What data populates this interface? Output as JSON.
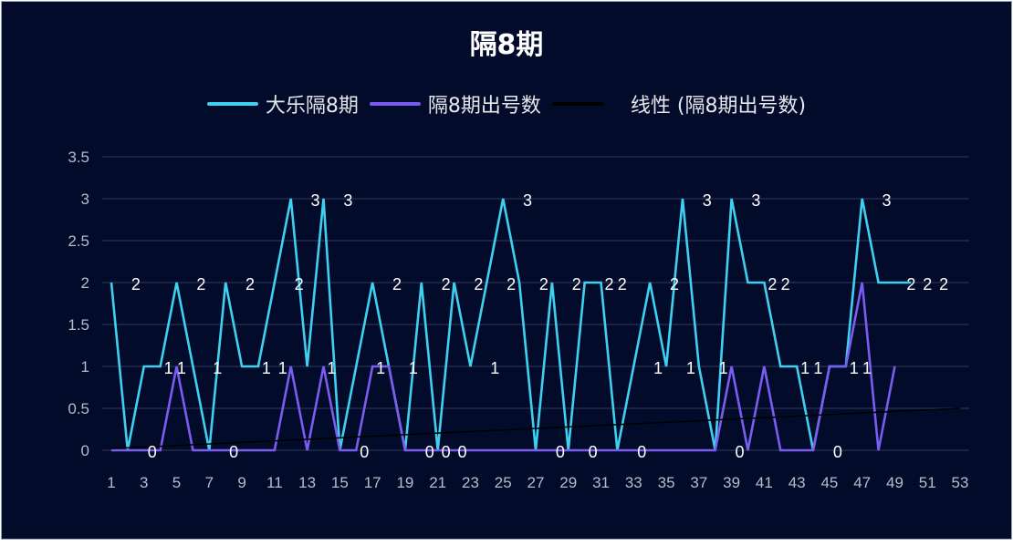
{
  "chart_data": {
    "type": "line",
    "title": "隔8期",
    "xlabel": "",
    "ylabel": "",
    "ylim": [
      0,
      3.5
    ],
    "yticks": [
      "0",
      "0.5",
      "1",
      "1.5",
      "2",
      "2.5",
      "3",
      "3.5"
    ],
    "xticks": [
      1,
      3,
      5,
      7,
      9,
      11,
      13,
      15,
      17,
      19,
      21,
      23,
      25,
      27,
      29,
      31,
      33,
      35,
      37,
      39,
      41,
      43,
      45,
      47,
      49,
      51,
      53
    ],
    "xrange": [
      1,
      53
    ],
    "grid": true,
    "legend_position": "top",
    "legend": [
      "大乐隔8期",
      "隔8期出号数",
      "线性 (隔8期出号数)"
    ],
    "series": [
      {
        "name": "大乐隔8期",
        "color": "#3fd0f0",
        "x": [
          1,
          2,
          3,
          4,
          5,
          6,
          7,
          8,
          9,
          10,
          11,
          12,
          13,
          14,
          15,
          16,
          17,
          18,
          19,
          20,
          21,
          22,
          23,
          24,
          25,
          26,
          27,
          28,
          29,
          30,
          31,
          32,
          33,
          34,
          35,
          36,
          37,
          38,
          39,
          40,
          41,
          42,
          43,
          44,
          45,
          46,
          47,
          48,
          49,
          50
        ],
        "values": [
          2,
          0,
          1,
          1,
          2,
          1,
          0,
          2,
          1,
          1,
          2,
          3,
          1,
          3,
          0,
          1,
          2,
          1,
          0,
          2,
          0,
          2,
          1,
          2,
          3,
          2,
          0,
          2,
          0,
          2,
          2,
          0,
          1,
          2,
          1,
          3,
          1,
          0,
          3,
          2,
          2,
          1,
          1,
          0,
          1,
          1,
          3,
          2,
          2,
          2
        ]
      },
      {
        "name": "隔8期出号数",
        "color": "#7b5cf0",
        "x": [
          1,
          2,
          3,
          4,
          5,
          6,
          7,
          8,
          9,
          10,
          11,
          12,
          13,
          14,
          15,
          16,
          17,
          18,
          19,
          20,
          21,
          22,
          23,
          24,
          25,
          26,
          27,
          28,
          29,
          30,
          31,
          32,
          33,
          34,
          35,
          36,
          37,
          38,
          39,
          40,
          41,
          42,
          43,
          44,
          45,
          46,
          47,
          48,
          49
        ],
        "values": [
          0,
          0,
          0,
          0,
          1,
          0,
          0,
          0,
          0,
          0,
          0,
          1,
          0,
          1,
          0,
          0,
          1,
          1,
          0,
          0,
          0,
          0,
          0,
          0,
          0,
          0,
          0,
          0,
          0,
          0,
          0,
          0,
          0,
          0,
          0,
          0,
          0,
          0,
          1,
          0,
          1,
          0,
          0,
          0,
          1,
          1,
          2,
          0,
          1
        ]
      },
      {
        "name": "线性 (隔8期出号数)",
        "color": "#000000",
        "type": "trendline",
        "x": [
          1,
          53
        ],
        "values": [
          0.02,
          0.5
        ]
      }
    ],
    "data_labels": [
      {
        "x": 2.5,
        "y": 2,
        "t": "2"
      },
      {
        "x": 3.5,
        "y": 0,
        "t": "0"
      },
      {
        "x": 4.5,
        "y": 1,
        "t": "1"
      },
      {
        "x": 5.3,
        "y": 1,
        "t": "1"
      },
      {
        "x": 6.5,
        "y": 2,
        "t": "2"
      },
      {
        "x": 7.5,
        "y": 1,
        "t": "1"
      },
      {
        "x": 8.5,
        "y": 0,
        "t": "0"
      },
      {
        "x": 9.5,
        "y": 2,
        "t": "2"
      },
      {
        "x": 10.5,
        "y": 1,
        "t": "1"
      },
      {
        "x": 11.5,
        "y": 1,
        "t": "1"
      },
      {
        "x": 12.5,
        "y": 2,
        "t": "2"
      },
      {
        "x": 13.5,
        "y": 3,
        "t": "3"
      },
      {
        "x": 15.5,
        "y": 3,
        "t": "3"
      },
      {
        "x": 14.5,
        "y": 1,
        "t": "1"
      },
      {
        "x": 16.5,
        "y": 0,
        "t": "0"
      },
      {
        "x": 18.5,
        "y": 2,
        "t": "2"
      },
      {
        "x": 17.5,
        "y": 1,
        "t": "1"
      },
      {
        "x": 19.5,
        "y": 1,
        "t": "1"
      },
      {
        "x": 20.5,
        "y": 0,
        "t": "0"
      },
      {
        "x": 21.5,
        "y": 2,
        "t": "2"
      },
      {
        "x": 21.5,
        "y": 0,
        "t": "0"
      },
      {
        "x": 23.5,
        "y": 2,
        "t": "2"
      },
      {
        "x": 22.5,
        "y": 0,
        "t": "0"
      },
      {
        "x": 24.5,
        "y": 1,
        "t": "1"
      },
      {
        "x": 25.5,
        "y": 2,
        "t": "2"
      },
      {
        "x": 26.5,
        "y": 3,
        "t": "3"
      },
      {
        "x": 27.5,
        "y": 2,
        "t": "2"
      },
      {
        "x": 28.5,
        "y": 0,
        "t": "0"
      },
      {
        "x": 29.5,
        "y": 2,
        "t": "2"
      },
      {
        "x": 30.5,
        "y": 0,
        "t": "0"
      },
      {
        "x": 31.5,
        "y": 2,
        "t": "2"
      },
      {
        "x": 32.3,
        "y": 2,
        "t": "2"
      },
      {
        "x": 33.5,
        "y": 0,
        "t": "0"
      },
      {
        "x": 34.5,
        "y": 1,
        "t": "1"
      },
      {
        "x": 35.5,
        "y": 2,
        "t": "2"
      },
      {
        "x": 36.5,
        "y": 1,
        "t": "1"
      },
      {
        "x": 37.5,
        "y": 3,
        "t": "3"
      },
      {
        "x": 38.5,
        "y": 1,
        "t": "1"
      },
      {
        "x": 39.5,
        "y": 0,
        "t": "0"
      },
      {
        "x": 40.5,
        "y": 3,
        "t": "3"
      },
      {
        "x": 41.5,
        "y": 2,
        "t": "2"
      },
      {
        "x": 42.3,
        "y": 2,
        "t": "2"
      },
      {
        "x": 43.5,
        "y": 1,
        "t": "1"
      },
      {
        "x": 44.3,
        "y": 1,
        "t": "1"
      },
      {
        "x": 45.5,
        "y": 0,
        "t": "0"
      },
      {
        "x": 46.5,
        "y": 1,
        "t": "1"
      },
      {
        "x": 47.3,
        "y": 1,
        "t": "1"
      },
      {
        "x": 48.5,
        "y": 3,
        "t": "3"
      },
      {
        "x": 50,
        "y": 2,
        "t": "2"
      },
      {
        "x": 51,
        "y": 2,
        "t": "2"
      },
      {
        "x": 52,
        "y": 2,
        "t": "2"
      }
    ]
  },
  "header": {
    "title": "隔8期"
  },
  "legend": {
    "items": [
      {
        "label": "大乐隔8期",
        "color": "#3fd0f0"
      },
      {
        "label": "隔8期出号数",
        "color": "#7b5cf0"
      },
      {
        "label": "线性 (隔8期出号数)",
        "color": "#000000"
      }
    ]
  },
  "colors": {
    "background": "#020b2a",
    "grid": "#2a3250",
    "tick": "#b8bcc8"
  }
}
